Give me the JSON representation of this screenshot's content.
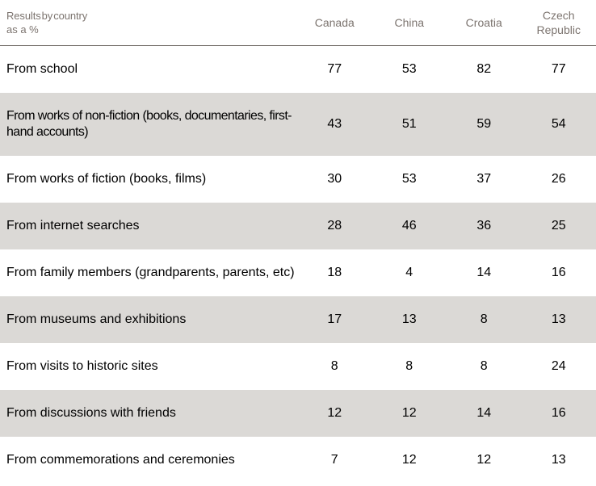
{
  "chart_data": {
    "type": "table",
    "title": "Results by country as a %",
    "corner_header": {
      "line1": "Results by country",
      "line2": "as a %"
    },
    "columns": [
      "Canada",
      "China",
      "Croatia",
      "Czech Republic"
    ],
    "rows": [
      {
        "label": "From school",
        "values": [
          "77",
          "53",
          "82",
          "77"
        ]
      },
      {
        "label": "From works of non-fiction (books, documentaries, first-hand accounts)",
        "values": [
          "43",
          "51",
          "59",
          "54"
        ]
      },
      {
        "label": "From works of fiction (books, films)",
        "values": [
          "30",
          "53",
          "37",
          "26"
        ]
      },
      {
        "label": "From internet searches",
        "values": [
          "28",
          "46",
          "36",
          "25"
        ]
      },
      {
        "label": "From family members (grandparents, parents, etc)",
        "values": [
          "18",
          "4",
          "14",
          "16"
        ]
      },
      {
        "label": "From museums and exhibitions",
        "values": [
          "17",
          "13",
          "8",
          "13"
        ]
      },
      {
        "label": "From visits to historic sites",
        "values": [
          "8",
          "8",
          "8",
          "24"
        ]
      },
      {
        "label": "From discussions with friends",
        "values": [
          "12",
          "12",
          "14",
          "16"
        ]
      },
      {
        "label": "From commemorations and ceremonies",
        "values": [
          "7",
          "12",
          "12",
          "13"
        ]
      }
    ]
  },
  "colors": {
    "header_text": "#7c746f",
    "header_rule": "#6e6863",
    "alt_row_background": "#dbd9d6",
    "body_text": "#000000",
    "page_background": "#ffffff"
  }
}
